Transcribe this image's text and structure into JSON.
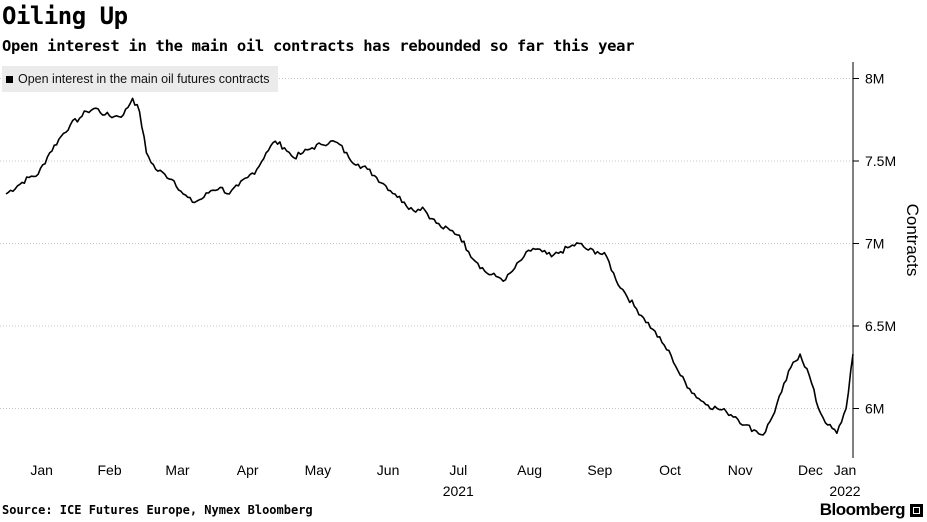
{
  "chart_data": {
    "type": "line",
    "title": "Oiling Up",
    "subtitle": "Open interest in the main oil contracts has rebounded so far this year",
    "ylabel": "Contracts",
    "xlabel": "",
    "ylim": [
      5.7,
      8.1
    ],
    "yticks": [
      {
        "value": 6.0,
        "label": "6M"
      },
      {
        "value": 6.5,
        "label": "6.5M"
      },
      {
        "value": 7.0,
        "label": "7M"
      },
      {
        "value": 7.5,
        "label": "7.5M"
      },
      {
        "value": 8.0,
        "label": "8M"
      }
    ],
    "xlim": [
      "2021-01-01",
      "2022-01-04"
    ],
    "xticks": [
      {
        "date": "2021-01-01",
        "label": "Jan",
        "sublabel": ""
      },
      {
        "date": "2021-02-01",
        "label": "Feb",
        "sublabel": ""
      },
      {
        "date": "2021-03-01",
        "label": "Mar",
        "sublabel": ""
      },
      {
        "date": "2021-04-01",
        "label": "Apr",
        "sublabel": ""
      },
      {
        "date": "2021-05-01",
        "label": "May",
        "sublabel": ""
      },
      {
        "date": "2021-06-01",
        "label": "Jun",
        "sublabel": ""
      },
      {
        "date": "2021-07-01",
        "label": "Jul",
        "sublabel": "2021"
      },
      {
        "date": "2021-08-01",
        "label": "Aug",
        "sublabel": ""
      },
      {
        "date": "2021-09-01",
        "label": "Sep",
        "sublabel": ""
      },
      {
        "date": "2021-10-01",
        "label": "Oct",
        "sublabel": ""
      },
      {
        "date": "2021-11-01",
        "label": "Nov",
        "sublabel": ""
      },
      {
        "date": "2021-12-01",
        "label": "Dec",
        "sublabel": ""
      },
      {
        "date": "2022-01-01",
        "label": "Jan",
        "sublabel": "2022"
      }
    ],
    "grid": true,
    "legend_position": "top-left",
    "series": [
      {
        "name": "Open interest in the main oil futures contracts",
        "color": "#000000",
        "x": [
          "2021-01-01",
          "2021-01-06",
          "2021-01-11",
          "2021-01-15",
          "2021-01-20",
          "2021-01-25",
          "2021-01-29",
          "2021-02-02",
          "2021-02-05",
          "2021-02-09",
          "2021-02-13",
          "2021-02-17",
          "2021-02-21",
          "2021-02-25",
          "2021-02-28",
          "2021-03-03",
          "2021-03-07",
          "2021-03-11",
          "2021-03-15",
          "2021-03-19",
          "2021-03-23",
          "2021-03-27",
          "2021-03-31",
          "2021-04-04",
          "2021-04-08",
          "2021-04-12",
          "2021-04-16",
          "2021-04-20",
          "2021-04-24",
          "2021-04-28",
          "2021-05-02",
          "2021-05-06",
          "2021-05-10",
          "2021-05-14",
          "2021-05-18",
          "2021-05-22",
          "2021-05-26",
          "2021-05-30",
          "2021-06-03",
          "2021-06-07",
          "2021-06-11",
          "2021-06-15",
          "2021-06-19",
          "2021-06-23",
          "2021-06-27",
          "2021-07-01",
          "2021-07-05",
          "2021-07-09",
          "2021-07-13",
          "2021-07-17",
          "2021-07-21",
          "2021-07-25",
          "2021-07-29",
          "2021-08-02",
          "2021-08-06",
          "2021-08-10",
          "2021-08-14",
          "2021-08-18",
          "2021-08-22",
          "2021-08-26",
          "2021-08-30",
          "2021-09-03",
          "2021-09-07",
          "2021-09-11",
          "2021-09-15",
          "2021-09-19",
          "2021-09-23",
          "2021-09-27",
          "2021-10-01",
          "2021-10-05",
          "2021-10-09",
          "2021-10-13",
          "2021-10-17",
          "2021-10-21",
          "2021-10-25",
          "2021-10-29",
          "2021-11-02",
          "2021-11-06",
          "2021-11-10",
          "2021-11-14",
          "2021-11-18",
          "2021-11-22",
          "2021-11-26",
          "2021-11-30",
          "2021-12-04",
          "2021-12-08",
          "2021-12-12",
          "2021-12-16",
          "2021-12-20",
          "2021-12-24",
          "2021-12-28",
          "2022-01-01",
          "2022-01-04"
        ],
        "values": [
          7.3,
          7.35,
          7.4,
          7.42,
          7.55,
          7.65,
          7.72,
          7.76,
          7.8,
          7.82,
          7.78,
          7.77,
          7.78,
          7.88,
          7.8,
          7.55,
          7.45,
          7.42,
          7.38,
          7.3,
          7.25,
          7.27,
          7.32,
          7.34,
          7.3,
          7.35,
          7.4,
          7.45,
          7.55,
          7.62,
          7.58,
          7.52,
          7.55,
          7.58,
          7.6,
          7.62,
          7.6,
          7.52,
          7.48,
          7.45,
          7.4,
          7.35,
          7.3,
          7.25,
          7.2,
          7.22,
          7.15,
          7.1,
          7.08,
          7.05,
          6.95,
          6.88,
          6.82,
          6.8,
          6.78,
          6.85,
          6.92,
          6.97,
          6.95,
          6.92,
          6.95,
          6.98,
          7.0,
          6.96,
          6.95,
          6.92,
          6.78,
          6.7,
          6.62,
          6.55,
          6.48,
          6.4,
          6.32,
          6.2,
          6.12,
          6.06,
          6.02,
          6.0,
          5.98,
          5.95,
          5.9,
          5.87,
          5.84,
          5.95,
          6.1,
          6.25,
          6.33,
          6.2,
          6.0,
          5.9,
          5.85,
          6.0,
          6.33
        ]
      }
    ]
  },
  "footer": {
    "source": "Source: ICE Futures Europe, Nymex Bloomberg",
    "brand": "Bloomberg"
  }
}
